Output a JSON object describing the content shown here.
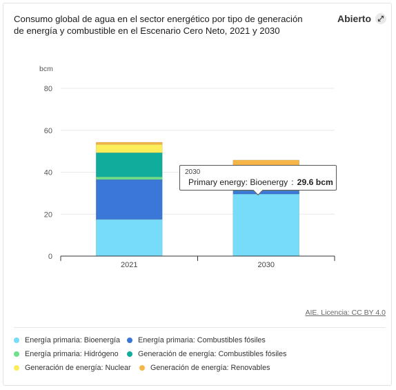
{
  "header": {
    "title": "Consumo global de agua en el sector energético por tipo de generación de energía y combustible en el Escenario Cero Neto, 2021 y 2030",
    "open_label": "Abierto"
  },
  "source_link": "AIE. Licencia: CC BY 4.0",
  "tooltip": {
    "category": "2030",
    "series": "Primary energy: Bioenergy",
    "value": "29.6 bcm",
    "color": "#76dcfa"
  },
  "chart_data": {
    "type": "bar",
    "stacked": true,
    "title": "Consumo global de agua en el sector energético por tipo de generación de energía y combustible en el Escenario Cero Neto, 2021 y 2030",
    "ylabel": "bcm",
    "ylim": [
      0,
      80
    ],
    "yticks": [
      0,
      20,
      40,
      60,
      80
    ],
    "grid": true,
    "legend_position": "bottom",
    "categories": [
      "2021",
      "2030"
    ],
    "series": [
      {
        "name": "Energía primaria: Bioenergía",
        "color": "#76dcfa",
        "values": [
          17.5,
          29.6
        ]
      },
      {
        "name": "Energía primaria: Combustibles fósiles",
        "color": "#3a77d6",
        "values": [
          19.0,
          1.6
        ]
      },
      {
        "name": "Energía primaria: Hidrógeno",
        "color": "#6ee08a",
        "values": [
          1.3,
          0.3
        ]
      },
      {
        "name": "Generación de energía: Combustibles fósiles",
        "color": "#10ad9c",
        "values": [
          11.5,
          5.5
        ]
      },
      {
        "name": "Generación de energía: Nuclear",
        "color": "#fced5a",
        "values": [
          4.0,
          6.0
        ]
      },
      {
        "name": "Generación de energía: Renovables",
        "color": "#f5b647",
        "values": [
          1.0,
          2.8
        ]
      }
    ]
  }
}
